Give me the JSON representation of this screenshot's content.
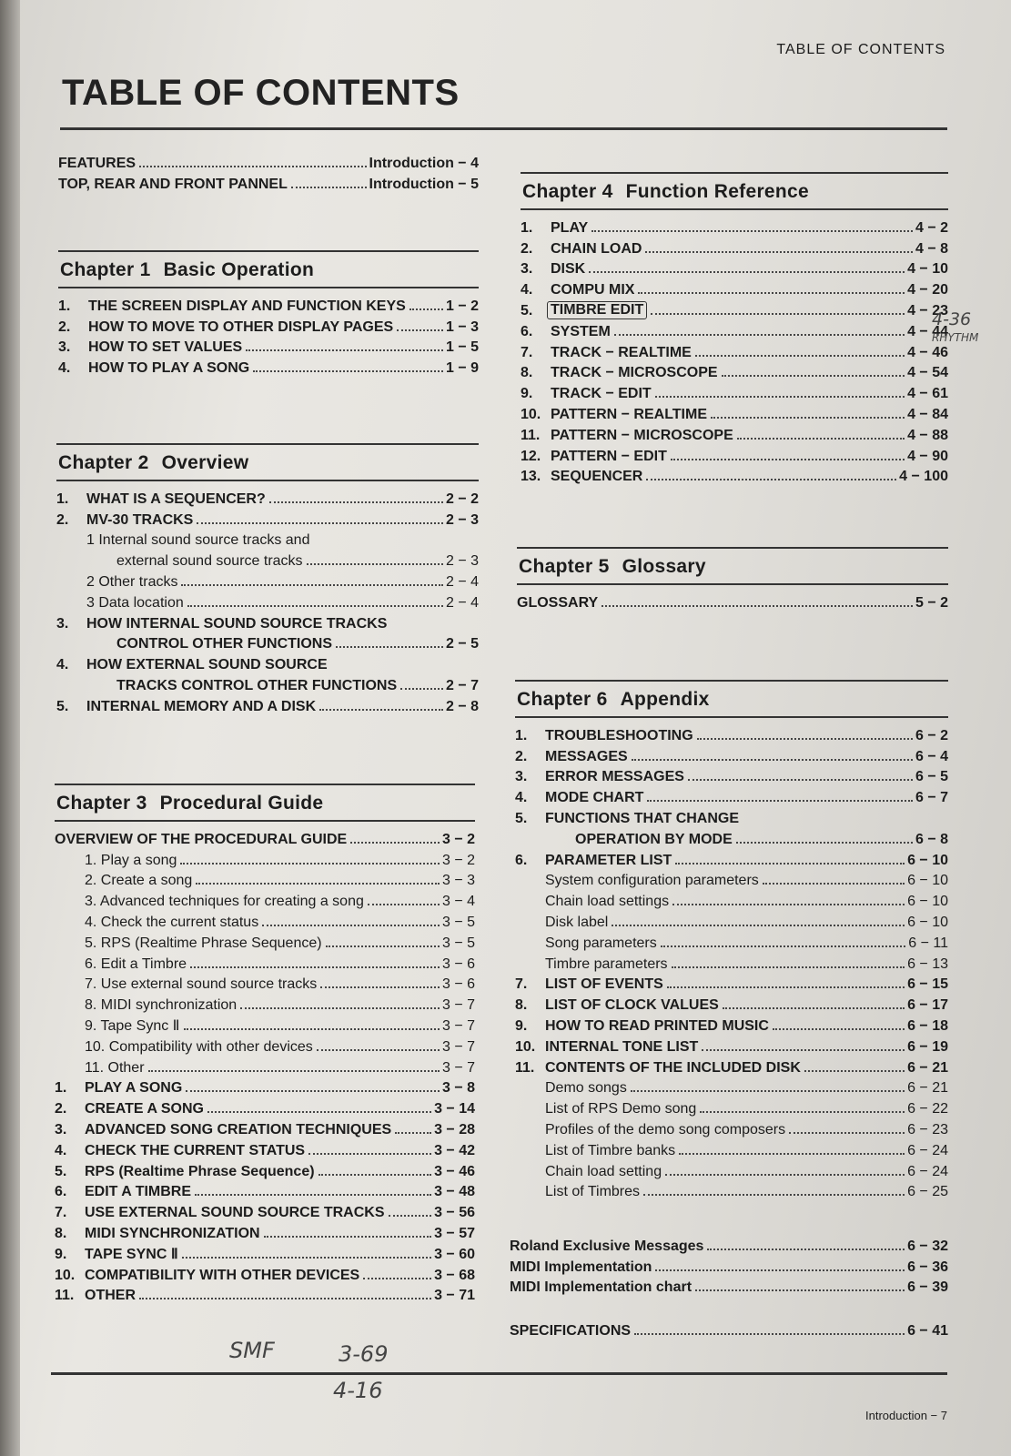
{
  "running_header": "TABLE OF CONTENTS",
  "title": "TABLE OF CONTENTS",
  "footer": "Introduction − 7",
  "front": [
    {
      "label": "FEATURES",
      "page": "Introduction − 4",
      "bold": true
    },
    {
      "label": "TOP, REAR AND FRONT PANNEL",
      "page": "Introduction − 5",
      "bold": true
    }
  ],
  "chapters": [
    {
      "num": "Chapter 1",
      "title": "Basic Operation",
      "items": [
        {
          "num": "1.",
          "label": "THE SCREEN DISPLAY AND FUNCTION KEYS",
          "page": "1 − 2",
          "bold": true
        },
        {
          "num": "2.",
          "label": "HOW TO MOVE TO OTHER DISPLAY PAGES",
          "page": "1 − 3",
          "bold": true
        },
        {
          "num": "3.",
          "label": "HOW TO SET VALUES",
          "page": "1 − 5",
          "bold": true
        },
        {
          "num": "4.",
          "label": "HOW TO PLAY A SONG",
          "page": "1 − 9",
          "bold": true
        }
      ]
    },
    {
      "num": "Chapter 2",
      "title": "Overview",
      "items": [
        {
          "num": "1.",
          "label": "WHAT IS A SEQUENCER?",
          "page": "2 − 2",
          "bold": true
        },
        {
          "num": "2.",
          "label": "MV-30 TRACKS",
          "page": "2 − 3",
          "bold": true
        },
        {
          "label": "1 Internal sound source tracks and",
          "indent": 1
        },
        {
          "label": "external sound source tracks",
          "page": "2 − 3",
          "indent": 2
        },
        {
          "label": "2 Other tracks",
          "page": "2 − 4",
          "indent": 1
        },
        {
          "label": "3 Data location",
          "page": "2 − 4",
          "indent": 1
        },
        {
          "num": "3.",
          "label": "HOW INTERNAL SOUND SOURCE TRACKS",
          "bold": true
        },
        {
          "label": "CONTROL OTHER FUNCTIONS",
          "page": "2 − 5",
          "bold": true,
          "indent": 2
        },
        {
          "num": "4.",
          "label": "HOW EXTERNAL SOUND SOURCE",
          "bold": true
        },
        {
          "label": "TRACKS CONTROL OTHER FUNCTIONS",
          "page": "2 − 7",
          "bold": true,
          "indent": 2
        },
        {
          "num": "5.",
          "label": "INTERNAL MEMORY AND A DISK",
          "page": "2 − 8",
          "bold": true
        }
      ]
    },
    {
      "num": "Chapter 3",
      "title": "Procedural Guide",
      "items": [
        {
          "label": "OVERVIEW OF THE PROCEDURAL GUIDE",
          "page": "3 − 2",
          "bold": true
        },
        {
          "label": "1. Play a song",
          "page": "3 − 2",
          "indent": 1
        },
        {
          "label": "2. Create a song",
          "page": "3 − 3",
          "indent": 1
        },
        {
          "label": "3. Advanced techniques for creating a song",
          "page": "3 − 4",
          "indent": 1
        },
        {
          "label": "4. Check the current status",
          "page": "3 − 5",
          "indent": 1
        },
        {
          "label": "5. RPS (Realtime Phrase Sequence)",
          "page": "3 − 5",
          "indent": 1
        },
        {
          "label": "6. Edit a Timbre",
          "page": "3 − 6",
          "indent": 1
        },
        {
          "label": "7. Use external sound source tracks",
          "page": "3 − 6",
          "indent": 1
        },
        {
          "label": "8. MIDI synchronization",
          "page": "3 − 7",
          "indent": 1
        },
        {
          "label": "9. Tape Sync Ⅱ",
          "page": "3 − 7",
          "indent": 1
        },
        {
          "label": "10.  Compatibility with other devices",
          "page": "3 − 7",
          "indent": 1
        },
        {
          "label": "11.  Other",
          "page": "3 − 7",
          "indent": 1
        },
        {
          "num": "1.",
          "label": "PLAY A SONG",
          "page": "3 − 8",
          "bold": true
        },
        {
          "num": "2.",
          "label": "CREATE A SONG",
          "page": "3 − 14",
          "bold": true
        },
        {
          "num": "3.",
          "label": "ADVANCED SONG CREATION TECHNIQUES",
          "page": "3 − 28",
          "bold": true
        },
        {
          "num": "4.",
          "label": "CHECK THE CURRENT STATUS",
          "page": "3 − 42",
          "bold": true
        },
        {
          "num": "5.",
          "label": "RPS (Realtime Phrase Sequence)",
          "page": "3 − 46",
          "bold": true
        },
        {
          "num": "6.",
          "label": "EDIT A TIMBRE",
          "page": "3 − 48",
          "bold": true
        },
        {
          "num": "7.",
          "label": "USE EXTERNAL SOUND SOURCE TRACKS",
          "page": "3 − 56",
          "bold": true
        },
        {
          "num": "8.",
          "label": "MIDI SYNCHRONIZATION",
          "page": "3 − 57",
          "bold": true
        },
        {
          "num": "9.",
          "label": "TAPE SYNC Ⅱ",
          "page": "3 − 60",
          "bold": true
        },
        {
          "num": "10.",
          "label": "COMPATIBILITY WITH OTHER DEVICES",
          "page": "3 − 68",
          "bold": true
        },
        {
          "num": "11.",
          "label": "OTHER",
          "page": "3 − 71",
          "bold": true
        }
      ]
    },
    {
      "num": "Chapter 4",
      "title": "Function Reference",
      "items": [
        {
          "num": "1.",
          "label": "PLAY",
          "page": "4 − 2",
          "bold": true
        },
        {
          "num": "2.",
          "label": "CHAIN LOAD",
          "page": "4 − 8",
          "bold": true
        },
        {
          "num": "3.",
          "label": "DISK",
          "page": "4 − 10",
          "bold": true
        },
        {
          "num": "4.",
          "label": "COMPU MIX",
          "page": "4 − 20",
          "bold": true
        },
        {
          "num": "5.",
          "label": "TIMBRE EDIT",
          "page": "4 − 23",
          "bold": true,
          "circled": true
        },
        {
          "num": "6.",
          "label": "SYSTEM",
          "page": "4 − 44",
          "bold": true
        },
        {
          "num": "7.",
          "label": "TRACK − REALTIME",
          "page": "4 − 46",
          "bold": true
        },
        {
          "num": "8.",
          "label": "TRACK − MICROSCOPE",
          "page": "4 − 54",
          "bold": true
        },
        {
          "num": "9.",
          "label": "TRACK − EDIT",
          "page": "4 − 61",
          "bold": true
        },
        {
          "num": "10.",
          "label": "PATTERN − REALTIME",
          "page": "4 − 84",
          "bold": true
        },
        {
          "num": "11.",
          "label": "PATTERN − MICROSCOPE",
          "page": "4 − 88",
          "bold": true
        },
        {
          "num": "12.",
          "label": "PATTERN − EDIT",
          "page": "4 − 90",
          "bold": true
        },
        {
          "num": "13.",
          "label": "SEQUENCER",
          "page": "4 − 100",
          "bold": true
        }
      ]
    },
    {
      "num": "Chapter 5",
      "title": "Glossary",
      "items": [
        {
          "label": "GLOSSARY",
          "page": "5 − 2",
          "bold": true
        }
      ]
    },
    {
      "num": "Chapter 6",
      "title": "Appendix",
      "items": [
        {
          "num": "1.",
          "label": "TROUBLESHOOTING",
          "page": "6 − 2",
          "bold": true
        },
        {
          "num": "2.",
          "label": "MESSAGES",
          "page": "6 − 4",
          "bold": true
        },
        {
          "num": "3.",
          "label": "ERROR MESSAGES",
          "page": "6 − 5",
          "bold": true
        },
        {
          "num": "4.",
          "label": "MODE CHART",
          "page": "6 − 7",
          "bold": true
        },
        {
          "num": "5.",
          "label": "FUNCTIONS THAT CHANGE",
          "bold": true
        },
        {
          "label": "OPERATION BY MODE",
          "page": "6 − 8",
          "bold": true,
          "indent": 2
        },
        {
          "num": "6.",
          "label": "PARAMETER LIST",
          "page": "6 − 10",
          "bold": true
        },
        {
          "label": "System configuration parameters",
          "page": "6 − 10",
          "indent": 1
        },
        {
          "label": "Chain load settings",
          "page": "6 − 10",
          "indent": 1
        },
        {
          "label": "Disk label",
          "page": "6 − 10",
          "indent": 1
        },
        {
          "label": "Song parameters",
          "page": "6 − 11",
          "indent": 1
        },
        {
          "label": "Timbre parameters",
          "page": "6 − 13",
          "indent": 1
        },
        {
          "num": "7.",
          "label": "LIST OF EVENTS",
          "page": "6 − 15",
          "bold": true
        },
        {
          "num": "8.",
          "label": "LIST OF CLOCK VALUES",
          "page": "6 − 17",
          "bold": true
        },
        {
          "num": "9.",
          "label": "HOW TO READ PRINTED MUSIC",
          "page": "6 − 18",
          "bold": true
        },
        {
          "num": "10.",
          "label": "INTERNAL TONE LIST",
          "page": "6 − 19",
          "bold": true
        },
        {
          "num": "11.",
          "label": "CONTENTS OF THE INCLUDED DISK",
          "page": "6 − 21",
          "bold": true
        },
        {
          "label": "Demo songs",
          "page": "6 − 21",
          "indent": 1
        },
        {
          "label": "List of RPS Demo song",
          "page": "6 − 22",
          "indent": 1
        },
        {
          "label": "Profiles of the demo song composers",
          "page": "6 − 23",
          "indent": 1
        },
        {
          "label": "List of Timbre banks",
          "page": "6 − 24",
          "indent": 1
        },
        {
          "label": "Chain load setting",
          "page": "6 − 24",
          "indent": 1
        },
        {
          "label": "List of Timbres",
          "page": "6 − 25",
          "indent": 1
        }
      ]
    }
  ],
  "extras": [
    {
      "label": "Roland Exclusive Messages",
      "page": "6 − 32",
      "bold": true
    },
    {
      "label": "MIDI Implementation",
      "page": "6 − 36",
      "bold": true
    },
    {
      "label": "MIDI Implementation chart",
      "page": "6 − 39",
      "bold": true
    }
  ],
  "specs": [
    {
      "label": "SPECIFICATIONS",
      "page": "6 − 41",
      "bold": true
    }
  ],
  "handwritten": {
    "note_timbre": "4-36",
    "note_rhythm": "RHYTHM",
    "note_smf": "SMF",
    "note_smf_page": "3-69",
    "note_below": "4-16"
  }
}
